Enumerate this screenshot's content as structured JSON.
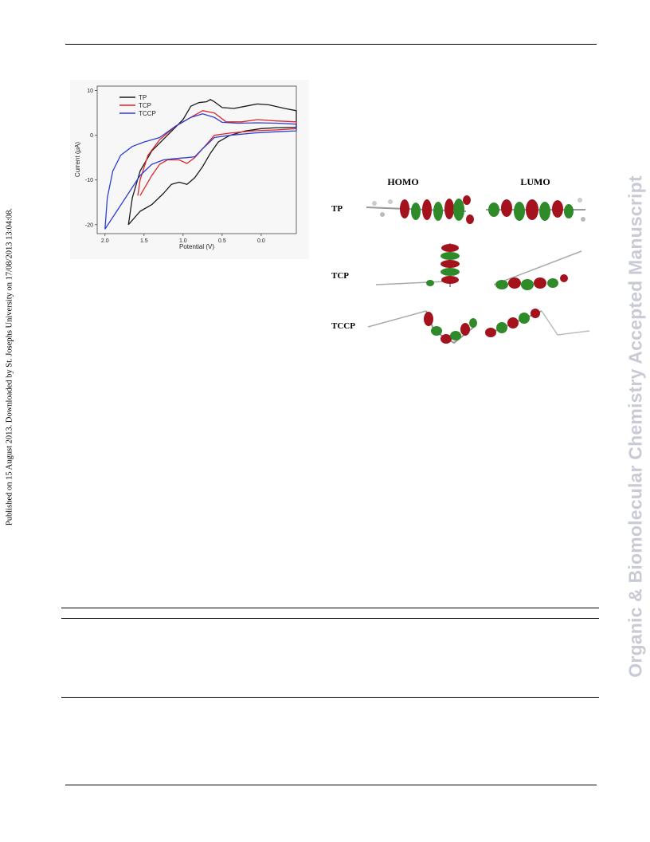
{
  "side_text_left": "Published on 15 August 2013. Downloaded by St. Josephs University on 17/08/2013 13:04:08.",
  "side_text_right": "Organic & Biomolecular Chemistry Accepted Manuscript",
  "orbital_figure": {
    "col_headers": [
      "HOMO",
      "LUMO"
    ],
    "rows": [
      "TP",
      "TCP",
      "TCCP"
    ]
  },
  "chart_data": {
    "type": "line",
    "xlabel": "Potential (V)",
    "ylabel": "Current (μA)",
    "xlim": [
      2.1,
      -0.45
    ],
    "ylim": [
      -22,
      11
    ],
    "x_ticks": [
      2.0,
      1.5,
      1.0,
      0.5,
      0.0
    ],
    "x_tick_labels": [
      "2.0",
      "1.5",
      "1.0",
      "0.5",
      "0.0"
    ],
    "y_ticks": [
      10,
      0,
      -10,
      -20
    ],
    "y_tick_labels": [
      "10",
      "0",
      "-10",
      "-20"
    ],
    "legend_position": "top-left",
    "series": [
      {
        "name": "TP",
        "color": "#1a1a1a",
        "points": [
          [
            1.7,
            -20
          ],
          [
            1.55,
            -17
          ],
          [
            1.4,
            -15.5
          ],
          [
            1.25,
            -13
          ],
          [
            1.15,
            -11
          ],
          [
            1.05,
            -10.5
          ],
          [
            0.95,
            -11
          ],
          [
            0.85,
            -9.5
          ],
          [
            0.75,
            -7
          ],
          [
            0.65,
            -4
          ],
          [
            0.55,
            -1.5
          ],
          [
            0.4,
            0
          ],
          [
            0.2,
            1
          ],
          [
            0.0,
            1.5
          ],
          [
            -0.2,
            1.7
          ],
          [
            -0.45,
            1.8
          ],
          [
            -0.45,
            5.5
          ],
          [
            -0.3,
            6
          ],
          [
            -0.1,
            6.8
          ],
          [
            0.05,
            7
          ],
          [
            0.2,
            6.5
          ],
          [
            0.35,
            6
          ],
          [
            0.5,
            6.2
          ],
          [
            0.6,
            7.5
          ],
          [
            0.65,
            8
          ],
          [
            0.7,
            7.5
          ],
          [
            0.8,
            7.3
          ],
          [
            0.9,
            6.5
          ],
          [
            1.0,
            3.5
          ],
          [
            1.2,
            0
          ],
          [
            1.4,
            -3.5
          ],
          [
            1.55,
            -8
          ],
          [
            1.65,
            -14
          ],
          [
            1.7,
            -20
          ]
        ]
      },
      {
        "name": "TCP",
        "color": "#e0262a",
        "points": [
          [
            1.55,
            -13.5
          ],
          [
            1.4,
            -9
          ],
          [
            1.3,
            -6.5
          ],
          [
            1.2,
            -5.5
          ],
          [
            1.05,
            -5.5
          ],
          [
            0.95,
            -6.3
          ],
          [
            0.85,
            -5
          ],
          [
            0.7,
            -2
          ],
          [
            0.6,
            0
          ],
          [
            0.4,
            0.5
          ],
          [
            0.1,
            1
          ],
          [
            -0.2,
            1.2
          ],
          [
            -0.45,
            1.5
          ],
          [
            -0.45,
            3
          ],
          [
            -0.2,
            3.2
          ],
          [
            0.05,
            3.5
          ],
          [
            0.25,
            3
          ],
          [
            0.45,
            3
          ],
          [
            0.6,
            5
          ],
          [
            0.75,
            5.5
          ],
          [
            0.9,
            4
          ],
          [
            1.1,
            2
          ],
          [
            1.3,
            -1
          ],
          [
            1.45,
            -4.5
          ],
          [
            1.55,
            -10
          ],
          [
            1.58,
            -13.5
          ]
        ]
      },
      {
        "name": "TCCP",
        "color": "#2b3fd4",
        "points": [
          [
            2.0,
            -21
          ],
          [
            1.85,
            -17
          ],
          [
            1.7,
            -13
          ],
          [
            1.55,
            -9
          ],
          [
            1.4,
            -6.5
          ],
          [
            1.25,
            -5.5
          ],
          [
            1.1,
            -5.2
          ],
          [
            0.95,
            -5
          ],
          [
            0.85,
            -4.8
          ],
          [
            0.75,
            -3
          ],
          [
            0.6,
            -0.5
          ],
          [
            0.4,
            0
          ],
          [
            0.1,
            0.5
          ],
          [
            -0.2,
            0.8
          ],
          [
            -0.45,
            1
          ],
          [
            -0.45,
            2.5
          ],
          [
            -0.2,
            2.7
          ],
          [
            0.05,
            2.8
          ],
          [
            0.3,
            2.7
          ],
          [
            0.5,
            2.9
          ],
          [
            0.6,
            4
          ],
          [
            0.75,
            4.8
          ],
          [
            0.9,
            4
          ],
          [
            1.1,
            2
          ],
          [
            1.3,
            -0.5
          ],
          [
            1.5,
            -1.5
          ],
          [
            1.65,
            -2.5
          ],
          [
            1.8,
            -4.5
          ],
          [
            1.9,
            -8
          ],
          [
            1.97,
            -14
          ],
          [
            2.0,
            -21
          ]
        ]
      }
    ]
  }
}
